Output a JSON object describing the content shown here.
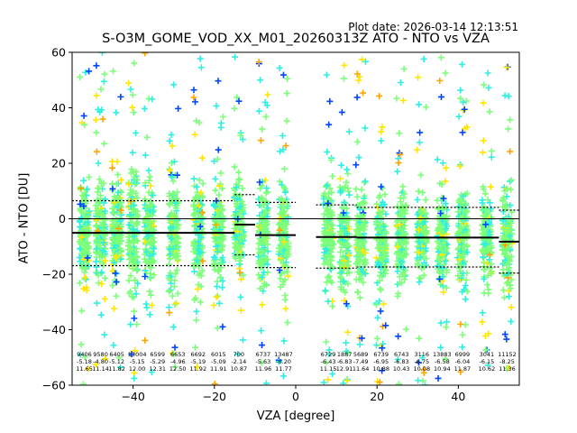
{
  "header": {
    "plot_date": "Plot date: 2026-03-14 12:13:51",
    "title": "S-O3M_GOME_VOD_XX_M01_20260313Z ATO - NTO vs VZA"
  },
  "chart_data": {
    "type": "scatter",
    "title": "S-O3M_GOME_VOD_XX_M01_20260313Z ATO - NTO vs VZA",
    "xlabel": "VZA [degree]",
    "ylabel": "ATO - NTO [DU]",
    "xlim": [
      -55,
      55
    ],
    "ylim": [
      -60,
      60
    ],
    "xticks": [
      -40,
      -20,
      0,
      20,
      40
    ],
    "yticks": [
      -60,
      -40,
      -20,
      0,
      20,
      40,
      60
    ],
    "zero_line": 0,
    "colors": {
      "mean": "#000000",
      "cyan": "#2ff0e0",
      "green": "#7cff79",
      "yellow": "#ffe600",
      "orange": "#ffa500",
      "blue": "#0045ff",
      "axis": "#000000"
    },
    "bins": [
      {
        "vza": -52,
        "mean": -5.18,
        "std": 11.65,
        "count": 9406
      },
      {
        "vza": -48,
        "mean": -4.8,
        "std": 11.14,
        "count": 9580
      },
      {
        "vza": -44,
        "mean": -5.12,
        "std": 11.82,
        "count": 6405
      },
      {
        "vza": -40,
        "mean": -5.15,
        "std": 12.0,
        "count": 13004
      },
      {
        "vza": -36,
        "mean": -5.29,
        "std": 12.31,
        "count": 6599
      },
      {
        "vza": -30,
        "mean": -4.96,
        "std": 12.5,
        "count": 6653
      },
      {
        "vza": -24,
        "mean": -5.19,
        "std": 11.92,
        "count": 6692
      },
      {
        "vza": -19,
        "mean": -5.09,
        "std": 11.91,
        "count": 6015
      },
      {
        "vza": -14,
        "mean": -2.14,
        "std": 10.87,
        "count": 700
      },
      {
        "vza": -8,
        "mean": -5.63,
        "std": 11.96,
        "count": 6737
      },
      {
        "vza": -3,
        "mean": -6.2,
        "std": 11.77,
        "count": 13487
      },
      {
        "vza": 8,
        "mean": -6.43,
        "std": 11.15,
        "count": 6729
      },
      {
        "vza": 12,
        "mean": -6.83,
        "std": 12.91,
        "count": 1887
      },
      {
        "vza": 16,
        "mean": -7.49,
        "std": 11.64,
        "count": 5689
      },
      {
        "vza": 21,
        "mean": -6.95,
        "std": 10.88,
        "count": 6739
      },
      {
        "vza": 26,
        "mean": -6.83,
        "std": 10.43,
        "count": 6743
      },
      {
        "vza": 31,
        "mean": -6.75,
        "std": 10.08,
        "count": 3116
      },
      {
        "vza": 36,
        "mean": -6.58,
        "std": 10.94,
        "count": 13883
      },
      {
        "vza": 41,
        "mean": -6.04,
        "std": 11.87,
        "count": 6999
      },
      {
        "vza": 47,
        "mean": -6.15,
        "std": 10.62,
        "count": 3041
      },
      {
        "vza": 52,
        "mean": -8.25,
        "std": 11.36,
        "count": 11152
      }
    ],
    "annotations": [
      {
        "vza": -52,
        "lines": [
          "9406",
          "-5.18",
          "11.65"
        ]
      },
      {
        "vza": -48,
        "lines": [
          "9580",
          "-4.80",
          "11.14"
        ]
      },
      {
        "vza": -44,
        "lines": [
          "6405",
          "-5.12",
          "11.82"
        ]
      },
      {
        "vza": -39,
        "lines": [
          "13004",
          "-5.15",
          "12.00"
        ]
      },
      {
        "vza": -34,
        "lines": [
          "6599",
          "-5.29",
          "12.31"
        ]
      },
      {
        "vza": -29,
        "lines": [
          "6653",
          "-4.96",
          "12.50"
        ]
      },
      {
        "vza": -24,
        "lines": [
          "6692",
          "-5.19",
          "11.92"
        ]
      },
      {
        "vza": -19,
        "lines": [
          "6015",
          "-5.09",
          "11.91"
        ]
      },
      {
        "vza": -14,
        "lines": [
          "700",
          "-2.14",
          "10.87"
        ]
      },
      {
        "vza": -8,
        "lines": [
          "6737",
          "-5.63",
          "11.96"
        ]
      },
      {
        "vza": -3,
        "lines": [
          "13487",
          "-6.20",
          "11.77"
        ]
      },
      {
        "vza": 8,
        "lines": [
          "6729",
          "-6.43",
          "11.15"
        ]
      },
      {
        "vza": 12,
        "lines": [
          "1887",
          "-6.83",
          "12.91"
        ]
      },
      {
        "vza": 16,
        "lines": [
          "5689",
          "-7.49",
          "11.64"
        ]
      },
      {
        "vza": 21,
        "lines": [
          "6739",
          "-6.95",
          "10.88"
        ]
      },
      {
        "vza": 26,
        "lines": [
          "6743",
          "-6.83",
          "10.43"
        ]
      },
      {
        "vza": 31,
        "lines": [
          "3116",
          "-6.75",
          "10.08"
        ]
      },
      {
        "vza": 36,
        "lines": [
          "13883",
          "-6.58",
          "10.94"
        ]
      },
      {
        "vza": 41,
        "lines": [
          "6999",
          "-6.04",
          "11.87"
        ]
      },
      {
        "vza": 47,
        "lines": [
          "3041",
          "-6.15",
          "10.62"
        ]
      },
      {
        "vza": 52,
        "lines": [
          "11152",
          "-8.25",
          "11.36"
        ]
      }
    ],
    "mean_segments": [
      {
        "x": [
          -55,
          -15
        ],
        "y": -5.1
      },
      {
        "x": [
          -15,
          -10
        ],
        "y": -2.1
      },
      {
        "x": [
          -10,
          0
        ],
        "y": -5.9
      },
      {
        "x": [
          5,
          15
        ],
        "y": -6.6
      },
      {
        "x": [
          15,
          50
        ],
        "y": -6.8
      },
      {
        "x": [
          50,
          55
        ],
        "y": -8.25
      }
    ],
    "upper_std_segments": [
      {
        "x": [
          -55,
          -15
        ],
        "y": 6.5
      },
      {
        "x": [
          -15,
          -10
        ],
        "y": 8.7
      },
      {
        "x": [
          -10,
          0
        ],
        "y": 5.9
      },
      {
        "x": [
          5,
          15
        ],
        "y": 5.0
      },
      {
        "x": [
          15,
          50
        ],
        "y": 4.1
      },
      {
        "x": [
          50,
          55
        ],
        "y": 3.1
      }
    ],
    "lower_std_segments": [
      {
        "x": [
          -55,
          -15
        ],
        "y": -16.9
      },
      {
        "x": [
          -15,
          -10
        ],
        "y": -13.0
      },
      {
        "x": [
          -10,
          0
        ],
        "y": -17.6
      },
      {
        "x": [
          5,
          15
        ],
        "y": -17.8
      },
      {
        "x": [
          15,
          50
        ],
        "y": -17.4
      },
      {
        "x": [
          50,
          55
        ],
        "y": -19.6
      }
    ],
    "grid": false,
    "legend": "none"
  }
}
